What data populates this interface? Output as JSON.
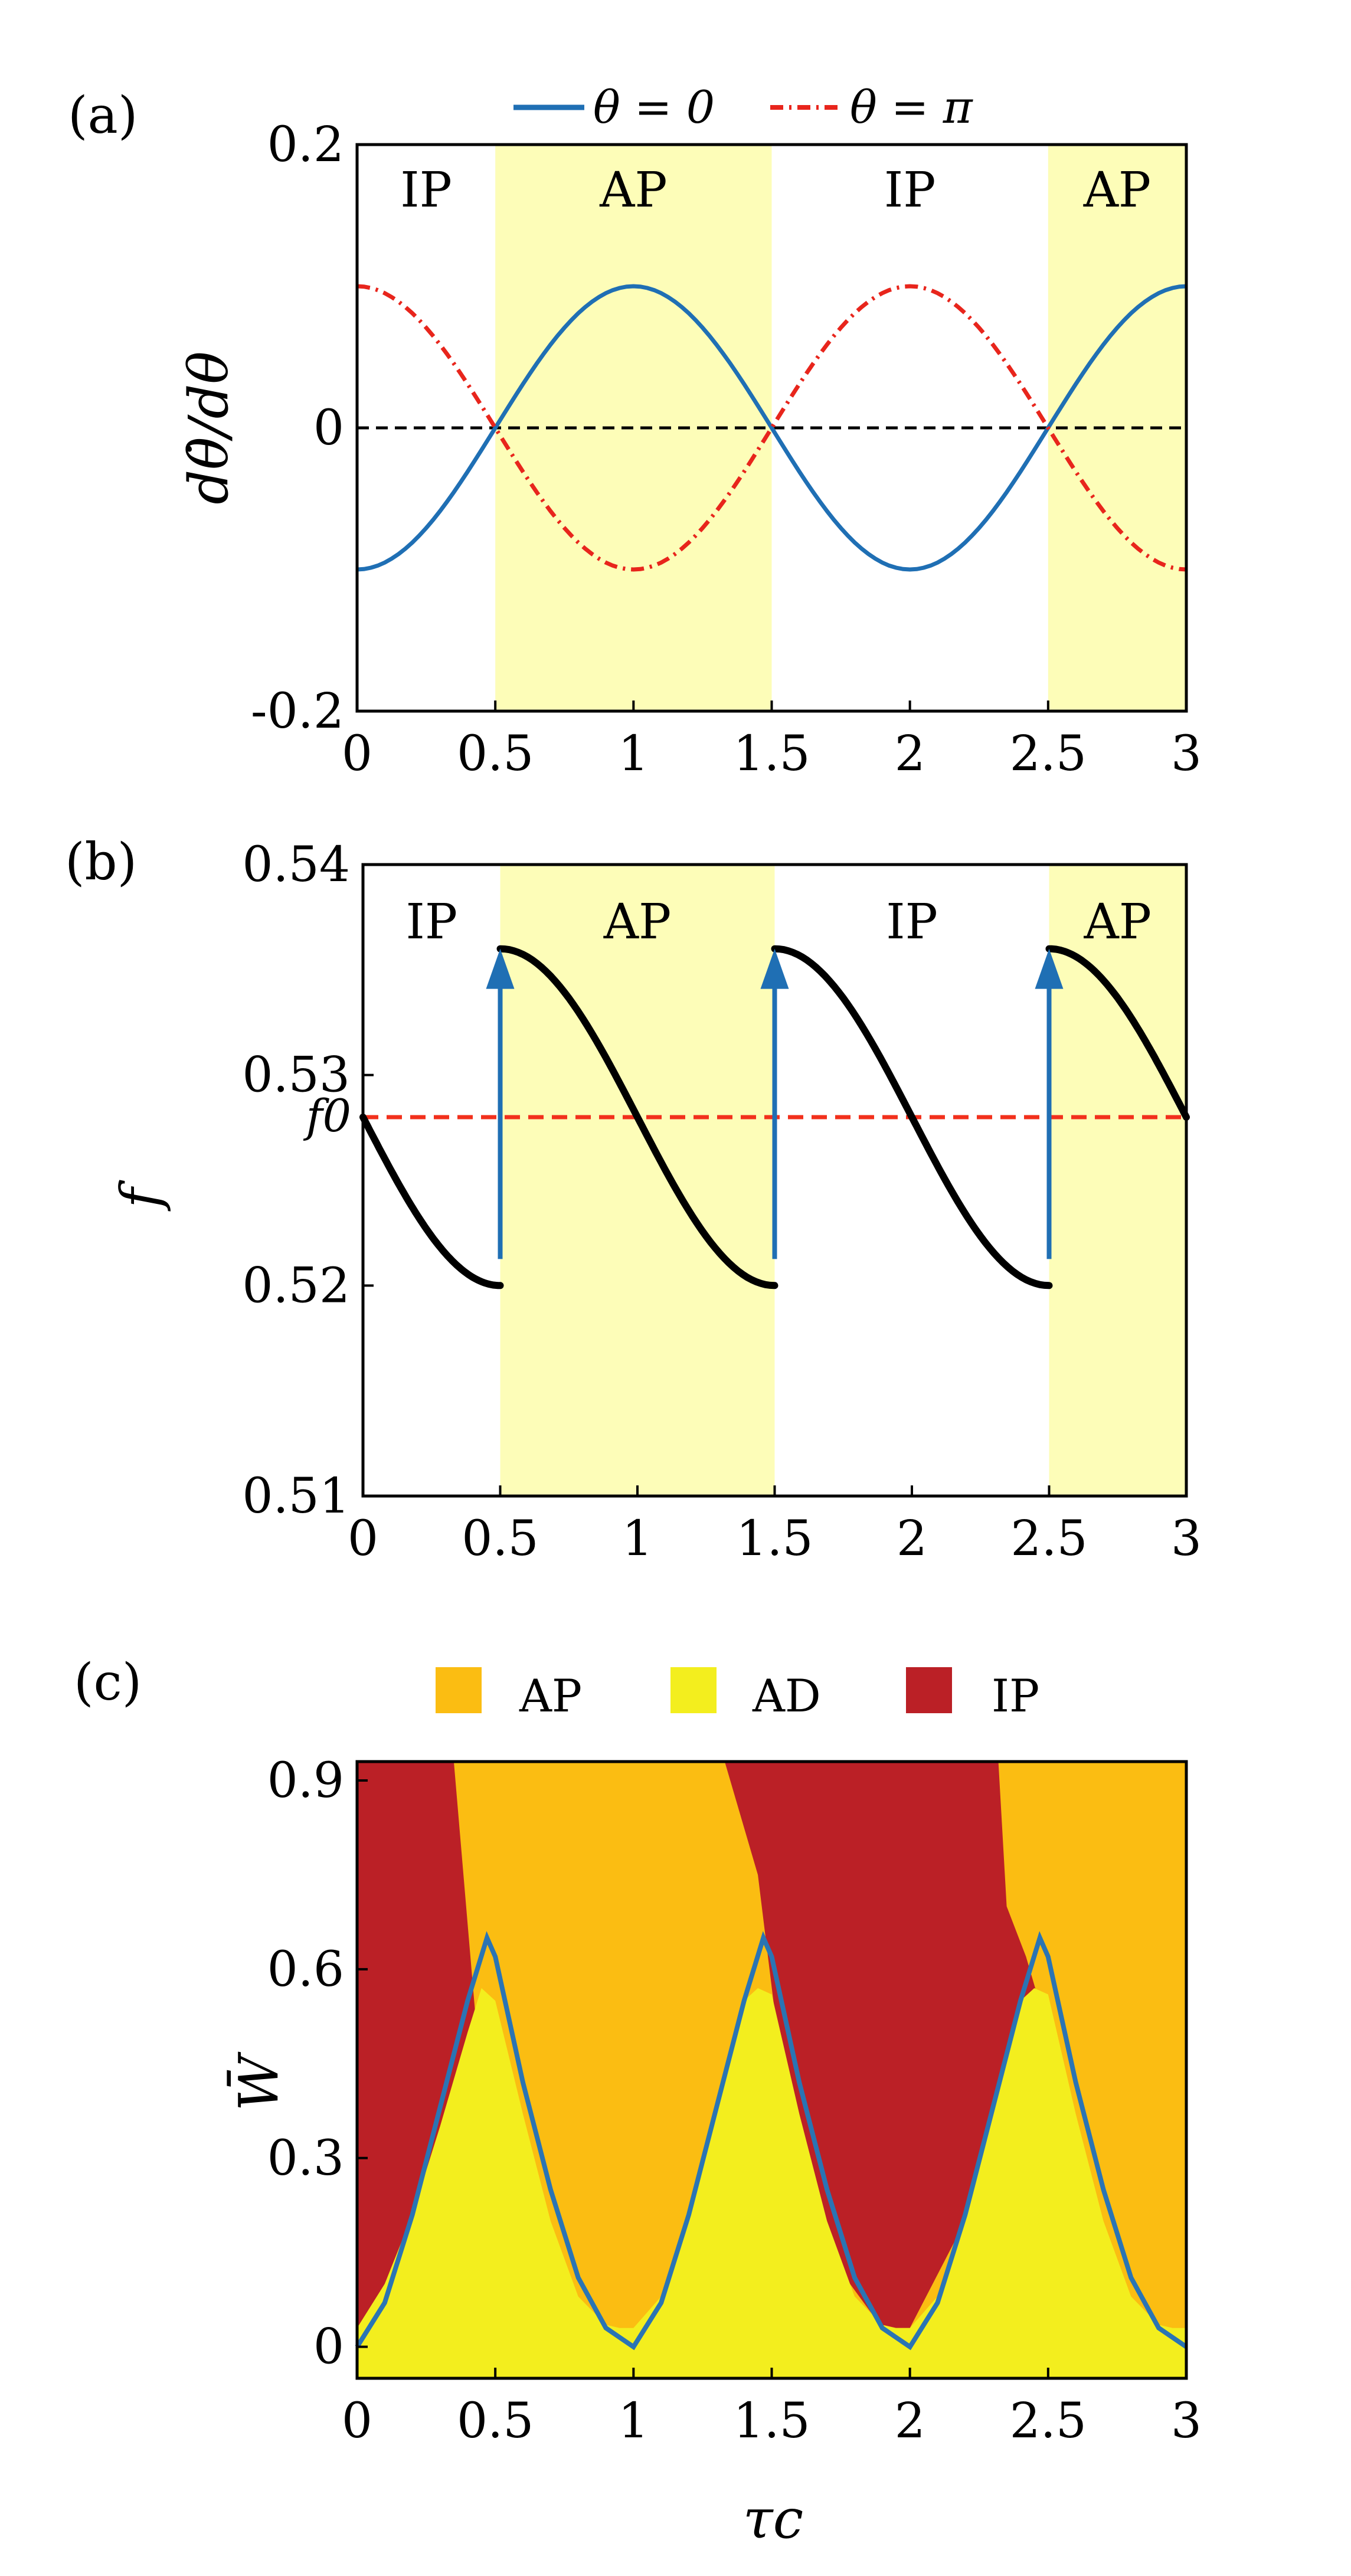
{
  "figure": {
    "panel_labels": [
      "(a)",
      "(b)",
      "(c)"
    ]
  },
  "chart_data": [
    {
      "id": "a",
      "type": "line",
      "title": "",
      "xlabel": "",
      "ylabel": "dθ̇/dθ",
      "xlim": [
        0,
        3
      ],
      "ylim": [
        -0.2,
        0.2
      ],
      "xticks": [
        0,
        0.5,
        1,
        1.5,
        2,
        2.5,
        3
      ],
      "xtick_labels": [
        "0",
        "0.5",
        "1",
        "1.5",
        "2",
        "2.5",
        "3"
      ],
      "yticks": [
        -0.2,
        0,
        0.2
      ],
      "ytick_labels": [
        "-0.2",
        "0",
        "0.2"
      ],
      "legend": {
        "placement": "top-outside",
        "entries": [
          "θ = 0",
          "θ = π"
        ]
      },
      "regions": [
        {
          "label": "IP",
          "from": 0,
          "to": 0.5,
          "shaded": false
        },
        {
          "label": "AP",
          "from": 0.5,
          "to": 1.5,
          "shaded": true
        },
        {
          "label": "IP",
          "from": 1.5,
          "to": 2.5,
          "shaded": false
        },
        {
          "label": "AP",
          "from": 2.5,
          "to": 3,
          "shaded": true
        }
      ],
      "series": [
        {
          "name": "θ = 0",
          "color": "#1f6fb4",
          "style": "solid",
          "x": [
            0,
            0.25,
            0.5,
            0.75,
            1,
            1.25,
            1.5,
            1.75,
            2,
            2.25,
            2.5,
            2.75,
            3
          ],
          "y": [
            -0.1,
            -0.071,
            0,
            0.071,
            0.1,
            0.071,
            0,
            -0.071,
            -0.1,
            -0.071,
            0,
            0.071,
            0.1
          ]
        },
        {
          "name": "θ = π",
          "color": "#e8251c",
          "style": "dash-dot",
          "x": [
            0,
            0.25,
            0.5,
            0.75,
            1,
            1.25,
            1.5,
            1.75,
            2,
            2.25,
            2.5,
            2.75,
            3
          ],
          "y": [
            0.1,
            0.071,
            0,
            -0.071,
            -0.1,
            -0.071,
            0,
            0.071,
            0.1,
            0.071,
            0,
            -0.071,
            -0.1
          ]
        }
      ],
      "reference_lines": [
        {
          "y": 0,
          "color": "#000000",
          "style": "dashed"
        }
      ],
      "grid": false
    },
    {
      "id": "b",
      "type": "line",
      "title": "",
      "xlabel": "",
      "ylabel": "f",
      "xlim": [
        0,
        3
      ],
      "ylim": [
        0.51,
        0.54
      ],
      "xticks": [
        0,
        0.5,
        1,
        1.5,
        2,
        2.5,
        3
      ],
      "xtick_labels": [
        "0",
        "0.5",
        "1",
        "1.5",
        "2",
        "2.5",
        "3"
      ],
      "yticks": [
        0.51,
        0.52,
        0.53,
        0.54
      ],
      "ytick_labels": [
        "0.51",
        "0.52",
        "0.53",
        "0.54"
      ],
      "extra_ytick": {
        "value": 0.528,
        "label": "f0"
      },
      "regions": [
        {
          "label": "IP",
          "from": 0,
          "to": 0.5,
          "shaded": false
        },
        {
          "label": "AP",
          "from": 0.5,
          "to": 1.5,
          "shaded": true
        },
        {
          "label": "IP",
          "from": 1.5,
          "to": 2.5,
          "shaded": false
        },
        {
          "label": "AP",
          "from": 2.5,
          "to": 3,
          "shaded": true
        }
      ],
      "segments": [
        {
          "x": [
            0,
            0.1,
            0.2,
            0.3,
            0.4,
            0.5
          ],
          "y": [
            0.528,
            0.5249,
            0.5227,
            0.521,
            0.5202,
            0.52
          ]
        },
        {
          "x": [
            0.5,
            0.75,
            1,
            1.25,
            1.5
          ],
          "y": [
            0.536,
            0.5337,
            0.528,
            0.5223,
            0.52
          ]
        },
        {
          "x": [
            1.5,
            1.75,
            2,
            2.25,
            2.5
          ],
          "y": [
            0.536,
            0.5337,
            0.528,
            0.5223,
            0.52
          ]
        },
        {
          "x": [
            2.5,
            2.6,
            2.7,
            2.8,
            2.9,
            3
          ],
          "y": [
            0.536,
            0.5358,
            0.535,
            0.5333,
            0.5311,
            0.528
          ]
        }
      ],
      "segment_color": "#000000",
      "jumps": [
        {
          "x": 0.5,
          "from": 0.52,
          "to": 0.536
        },
        {
          "x": 1.5,
          "from": 0.52,
          "to": 0.536
        },
        {
          "x": 2.5,
          "from": 0.52,
          "to": 0.536
        }
      ],
      "jump_color": "#1f6fb4",
      "reference_lines": [
        {
          "y": 0.528,
          "color": "#f2301c",
          "style": "dashed"
        }
      ],
      "grid": false
    },
    {
      "id": "c",
      "type": "heatmap",
      "title": "",
      "xlabel": "τc",
      "ylabel": "W̄",
      "xlim": [
        0,
        3
      ],
      "ylim": [
        -0.05,
        0.93
      ],
      "xticks": [
        0,
        0.5,
        1,
        1.5,
        2,
        2.5,
        3
      ],
      "xtick_labels": [
        "0",
        "0.5",
        "1",
        "1.5",
        "2",
        "2.5",
        "3"
      ],
      "yticks": [
        0,
        0.3,
        0.6,
        0.9
      ],
      "ytick_labels": [
        "0",
        "0.3",
        "0.6",
        "0.9"
      ],
      "legend": {
        "placement": "top-outside",
        "entries": [
          {
            "label": "AP",
            "color": "#fbbd12"
          },
          {
            "label": "AD",
            "color": "#f3ee1e"
          },
          {
            "label": "IP",
            "color": "#bb2026"
          }
        ]
      },
      "ad_boundary": {
        "x": [
          0,
          0.1,
          0.2,
          0.3,
          0.4,
          0.45,
          0.5,
          0.6,
          0.7,
          0.8,
          0.9,
          0.95,
          1,
          1.1,
          1.2,
          1.3,
          1.4,
          1.45,
          1.5,
          1.6,
          1.7,
          1.8,
          1.9,
          1.95,
          2,
          2.1,
          2.2,
          2.3,
          2.4,
          2.45,
          2.5,
          2.6,
          2.7,
          2.8,
          2.9,
          2.95,
          3
        ],
        "y": [
          0.03,
          0.1,
          0.21,
          0.35,
          0.5,
          0.57,
          0.55,
          0.37,
          0.2,
          0.08,
          0.035,
          0.03,
          0.03,
          0.08,
          0.2,
          0.37,
          0.55,
          0.57,
          0.56,
          0.37,
          0.2,
          0.08,
          0.035,
          0.03,
          0.03,
          0.08,
          0.2,
          0.37,
          0.55,
          0.57,
          0.56,
          0.37,
          0.2,
          0.08,
          0.035,
          0.03,
          0.03
        ]
      },
      "ip_ap_boundaries": [
        {
          "type": "IP-left",
          "y": [
            0.93,
            0.8,
            0.65,
            0.5,
            0.35,
            0.2,
            0.1
          ],
          "x_upper": [
            0.35,
            0.38,
            0.42,
            0.47,
            0.5,
            0.52,
            0.53
          ]
        }
      ],
      "regions": [
        {
          "label": "IP",
          "x_range": [
            0,
            0.4
          ],
          "y_range": [
            0.05,
            0.93
          ]
        },
        {
          "label": "AP",
          "x_range": [
            0.4,
            1.35
          ],
          "y_range": [
            0.05,
            0.93
          ]
        },
        {
          "label": "IP",
          "x_range": [
            1.35,
            2.3
          ],
          "y_range": [
            0.05,
            0.93
          ]
        },
        {
          "label": "AP",
          "x_range": [
            2.3,
            3
          ],
          "y_range": [
            0.05,
            0.93
          ]
        },
        {
          "label": "AD",
          "x_range": [
            0,
            3
          ],
          "y_range": [
            -0.05,
            0.05
          ]
        }
      ],
      "curve": {
        "color": "#2a74b4",
        "x": [
          0,
          0.1,
          0.2,
          0.3,
          0.4,
          0.47,
          0.5,
          0.6,
          0.7,
          0.8,
          0.9,
          1,
          1.1,
          1.2,
          1.3,
          1.4,
          1.47,
          1.5,
          1.6,
          1.7,
          1.8,
          1.9,
          2,
          2.1,
          2.2,
          2.3,
          2.4,
          2.47,
          2.5,
          2.6,
          2.7,
          2.8,
          2.9,
          3
        ],
        "y": [
          0.0,
          0.07,
          0.21,
          0.38,
          0.55,
          0.65,
          0.62,
          0.42,
          0.25,
          0.11,
          0.03,
          0.0,
          0.07,
          0.21,
          0.38,
          0.55,
          0.65,
          0.62,
          0.42,
          0.25,
          0.11,
          0.03,
          0.0,
          0.07,
          0.21,
          0.38,
          0.55,
          0.65,
          0.62,
          0.42,
          0.25,
          0.11,
          0.03,
          0.0
        ]
      },
      "grid": false
    }
  ]
}
